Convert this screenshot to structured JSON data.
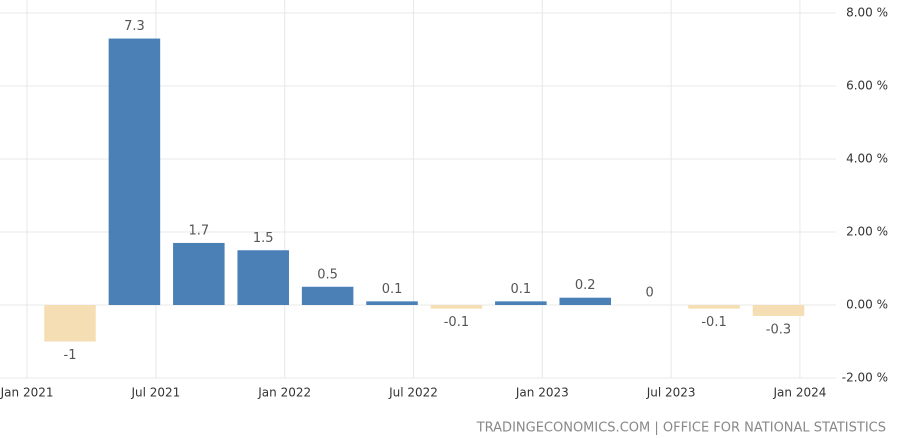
{
  "chart_data": {
    "type": "bar",
    "x": [
      "2021-03",
      "2021-06",
      "2021-09",
      "2021-12",
      "2022-03",
      "2022-06",
      "2022-09",
      "2022-12",
      "2023-03",
      "2023-06",
      "2023-09",
      "2023-12"
    ],
    "values": [
      -1,
      7.3,
      1.7,
      1.5,
      0.5,
      0.1,
      -0.1,
      0.1,
      0.2,
      0,
      -0.1,
      -0.3
    ],
    "color": "#4a80b6",
    "negative_color": "#f5deb3",
    "xlim": [
      "2020-12",
      "2024-02"
    ],
    "xticks": [
      {
        "value": "2021-01",
        "label": "Jan 2021"
      },
      {
        "value": "2021-07",
        "label": "Jul 2021"
      },
      {
        "value": "2022-01",
        "label": "Jan 2022"
      },
      {
        "value": "2022-07",
        "label": "Jul 2022"
      },
      {
        "value": "2023-01",
        "label": "Jan 2023"
      },
      {
        "value": "2023-07",
        "label": "Jul 2023"
      },
      {
        "value": "2024-01",
        "label": "Jan 2024"
      }
    ],
    "ylim": [
      -2,
      8
    ],
    "yticks": [
      {
        "value": -2,
        "label": "-2.00 %"
      },
      {
        "value": 0,
        "label": "0.00 %"
      },
      {
        "value": 2,
        "label": "2.00 %"
      },
      {
        "value": 4,
        "label": "4.00 %"
      },
      {
        "value": 6,
        "label": "6.00 %"
      },
      {
        "value": 8,
        "label": "8.00 %"
      }
    ],
    "grid": true,
    "source": "TRADINGECONOMICS.COM | OFFICE FOR NATIONAL STATISTICS"
  }
}
